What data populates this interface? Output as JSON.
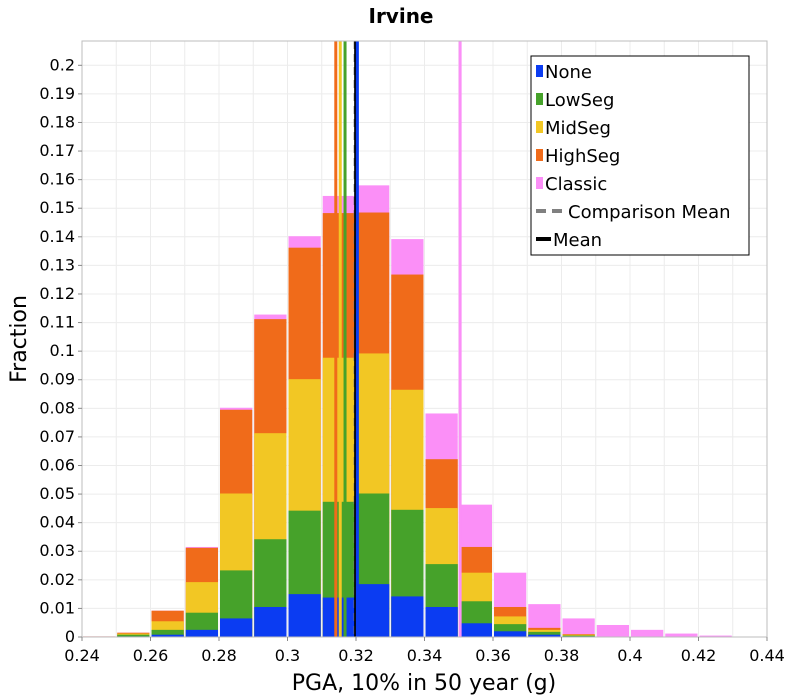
{
  "chart_data": {
    "type": "bar",
    "title": "Irvine",
    "xlabel": "PGA, 10% in 50 year (g)",
    "ylabel": "Fraction",
    "xlim": [
      0.24,
      0.44
    ],
    "ylim": [
      0,
      0.2085
    ],
    "grid": true,
    "legend_position": "top-right",
    "x_ticks": [
      0.24,
      0.26,
      0.28,
      0.3,
      0.32,
      0.34,
      0.36,
      0.38,
      0.4,
      0.42,
      0.44
    ],
    "x_tick_labels": [
      "0.24",
      "0.26",
      "0.28",
      "0.3",
      "0.32",
      "0.34",
      "0.36",
      "0.38",
      "0.4",
      "0.42",
      "0.44"
    ],
    "y_ticks": [
      0,
      0.01,
      0.02,
      0.03,
      0.04,
      0.05,
      0.06,
      0.07,
      0.08,
      0.09,
      0.1,
      0.11,
      0.12,
      0.13,
      0.14,
      0.15,
      0.16,
      0.17,
      0.18,
      0.19,
      0.2
    ],
    "y_tick_labels": [
      "0",
      "0.01",
      "0.02",
      "0.03",
      "0.04",
      "0.05",
      "0.06",
      "0.07",
      "0.08",
      "0.09",
      "0.1",
      "0.11",
      "0.12",
      "0.13",
      "0.14",
      "0.15",
      "0.16",
      "0.17",
      "0.18",
      "0.19",
      "0.2"
    ],
    "bin_width": 0.01,
    "bin_centers": [
      0.245,
      0.255,
      0.265,
      0.275,
      0.285,
      0.295,
      0.305,
      0.315,
      0.325,
      0.335,
      0.345,
      0.355,
      0.365,
      0.375,
      0.385,
      0.395,
      0.405,
      0.415,
      0.425
    ],
    "series": [
      {
        "name": "None",
        "color": "#0b3cf2",
        "values": [
          0,
          0.0002,
          0.0008,
          0.0025,
          0.0065,
          0.0105,
          0.015,
          0.0138,
          0.0185,
          0.0142,
          0.0105,
          0.0048,
          0.002,
          0.0008,
          0.0002,
          0,
          0,
          0,
          0
        ]
      },
      {
        "name": "LowSeg",
        "color": "#46a22a",
        "values": [
          0,
          0.0008,
          0.0025,
          0.0085,
          0.0233,
          0.0342,
          0.0442,
          0.0473,
          0.0502,
          0.0445,
          0.0255,
          0.0125,
          0.0045,
          0.0018,
          0.0005,
          0,
          0,
          0,
          0
        ]
      },
      {
        "name": "MidSeg",
        "color": "#f2c724",
        "values": [
          0,
          0.0012,
          0.0055,
          0.0192,
          0.0502,
          0.0713,
          0.0902,
          0.0977,
          0.0992,
          0.0865,
          0.0451,
          0.0225,
          0.0072,
          0.0025,
          0.0008,
          0,
          0,
          0,
          0
        ]
      },
      {
        "name": "HighSeg",
        "color": "#f06b1a",
        "values": [
          0.0002,
          0.0015,
          0.0092,
          0.0312,
          0.0795,
          0.1112,
          0.1362,
          0.1483,
          0.1485,
          0.1268,
          0.0622,
          0.0315,
          0.0105,
          0.0032,
          0.001,
          0,
          0,
          0,
          0
        ]
      },
      {
        "name": "Classic",
        "color": "#fb8ff7",
        "values": [
          0.0002,
          0.0015,
          0.0092,
          0.0315,
          0.0802,
          0.1128,
          0.1402,
          0.1543,
          0.158,
          0.1392,
          0.0782,
          0.0463,
          0.0225,
          0.0115,
          0.0065,
          0.0042,
          0.0025,
          0.0012,
          0.0005
        ]
      }
    ],
    "vertical_lines": [
      {
        "name": "HighSeg mean",
        "x": 0.3141,
        "color": "#f06b1a",
        "style": "solid"
      },
      {
        "name": "MidSeg mean",
        "x": 0.3154,
        "color": "#f2c724",
        "style": "solid"
      },
      {
        "name": "LowSeg mean",
        "x": 0.3168,
        "color": "#46a22a",
        "style": "solid"
      },
      {
        "name": "Classic mean",
        "x": 0.3504,
        "color": "#fb8ff7",
        "style": "solid"
      },
      {
        "name": "Comparison Mean",
        "x": 0.3199,
        "color": "#808080",
        "style": "dashed"
      },
      {
        "name": "Mean",
        "x": 0.3199,
        "color": "#000000",
        "style": "solid"
      },
      {
        "name": "None mean",
        "x": 0.3204,
        "color": "#0b3cf2",
        "style": "solid"
      }
    ],
    "legend": [
      {
        "label": "None",
        "color": "#0b3cf2",
        "kind": "square"
      },
      {
        "label": "LowSeg",
        "color": "#46a22a",
        "kind": "square"
      },
      {
        "label": "MidSeg",
        "color": "#f2c724",
        "kind": "square"
      },
      {
        "label": "HighSeg",
        "color": "#f06b1a",
        "kind": "square"
      },
      {
        "label": "Classic",
        "color": "#fb8ff7",
        "kind": "square"
      },
      {
        "label": "Comparison Mean",
        "color": "#808080",
        "kind": "dashed"
      },
      {
        "label": "Mean",
        "color": "#000000",
        "kind": "line"
      }
    ]
  }
}
